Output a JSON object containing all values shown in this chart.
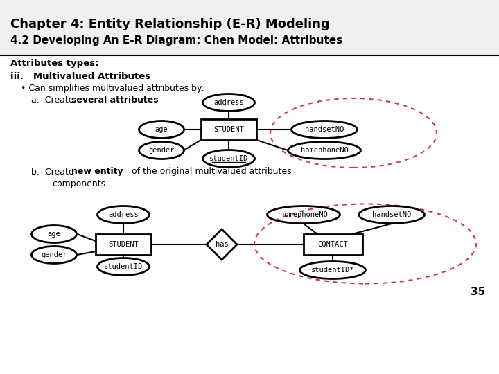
{
  "title1": "Chapter 4: Entity Relationship (E-R) Modeling",
  "title2": "4.2 Developing An E-R Diagram: Chen Model: Attributes",
  "bg_color": "#ffffff",
  "text_color": "#000000",
  "dashed_color": "#cc3366",
  "page_number": "35"
}
